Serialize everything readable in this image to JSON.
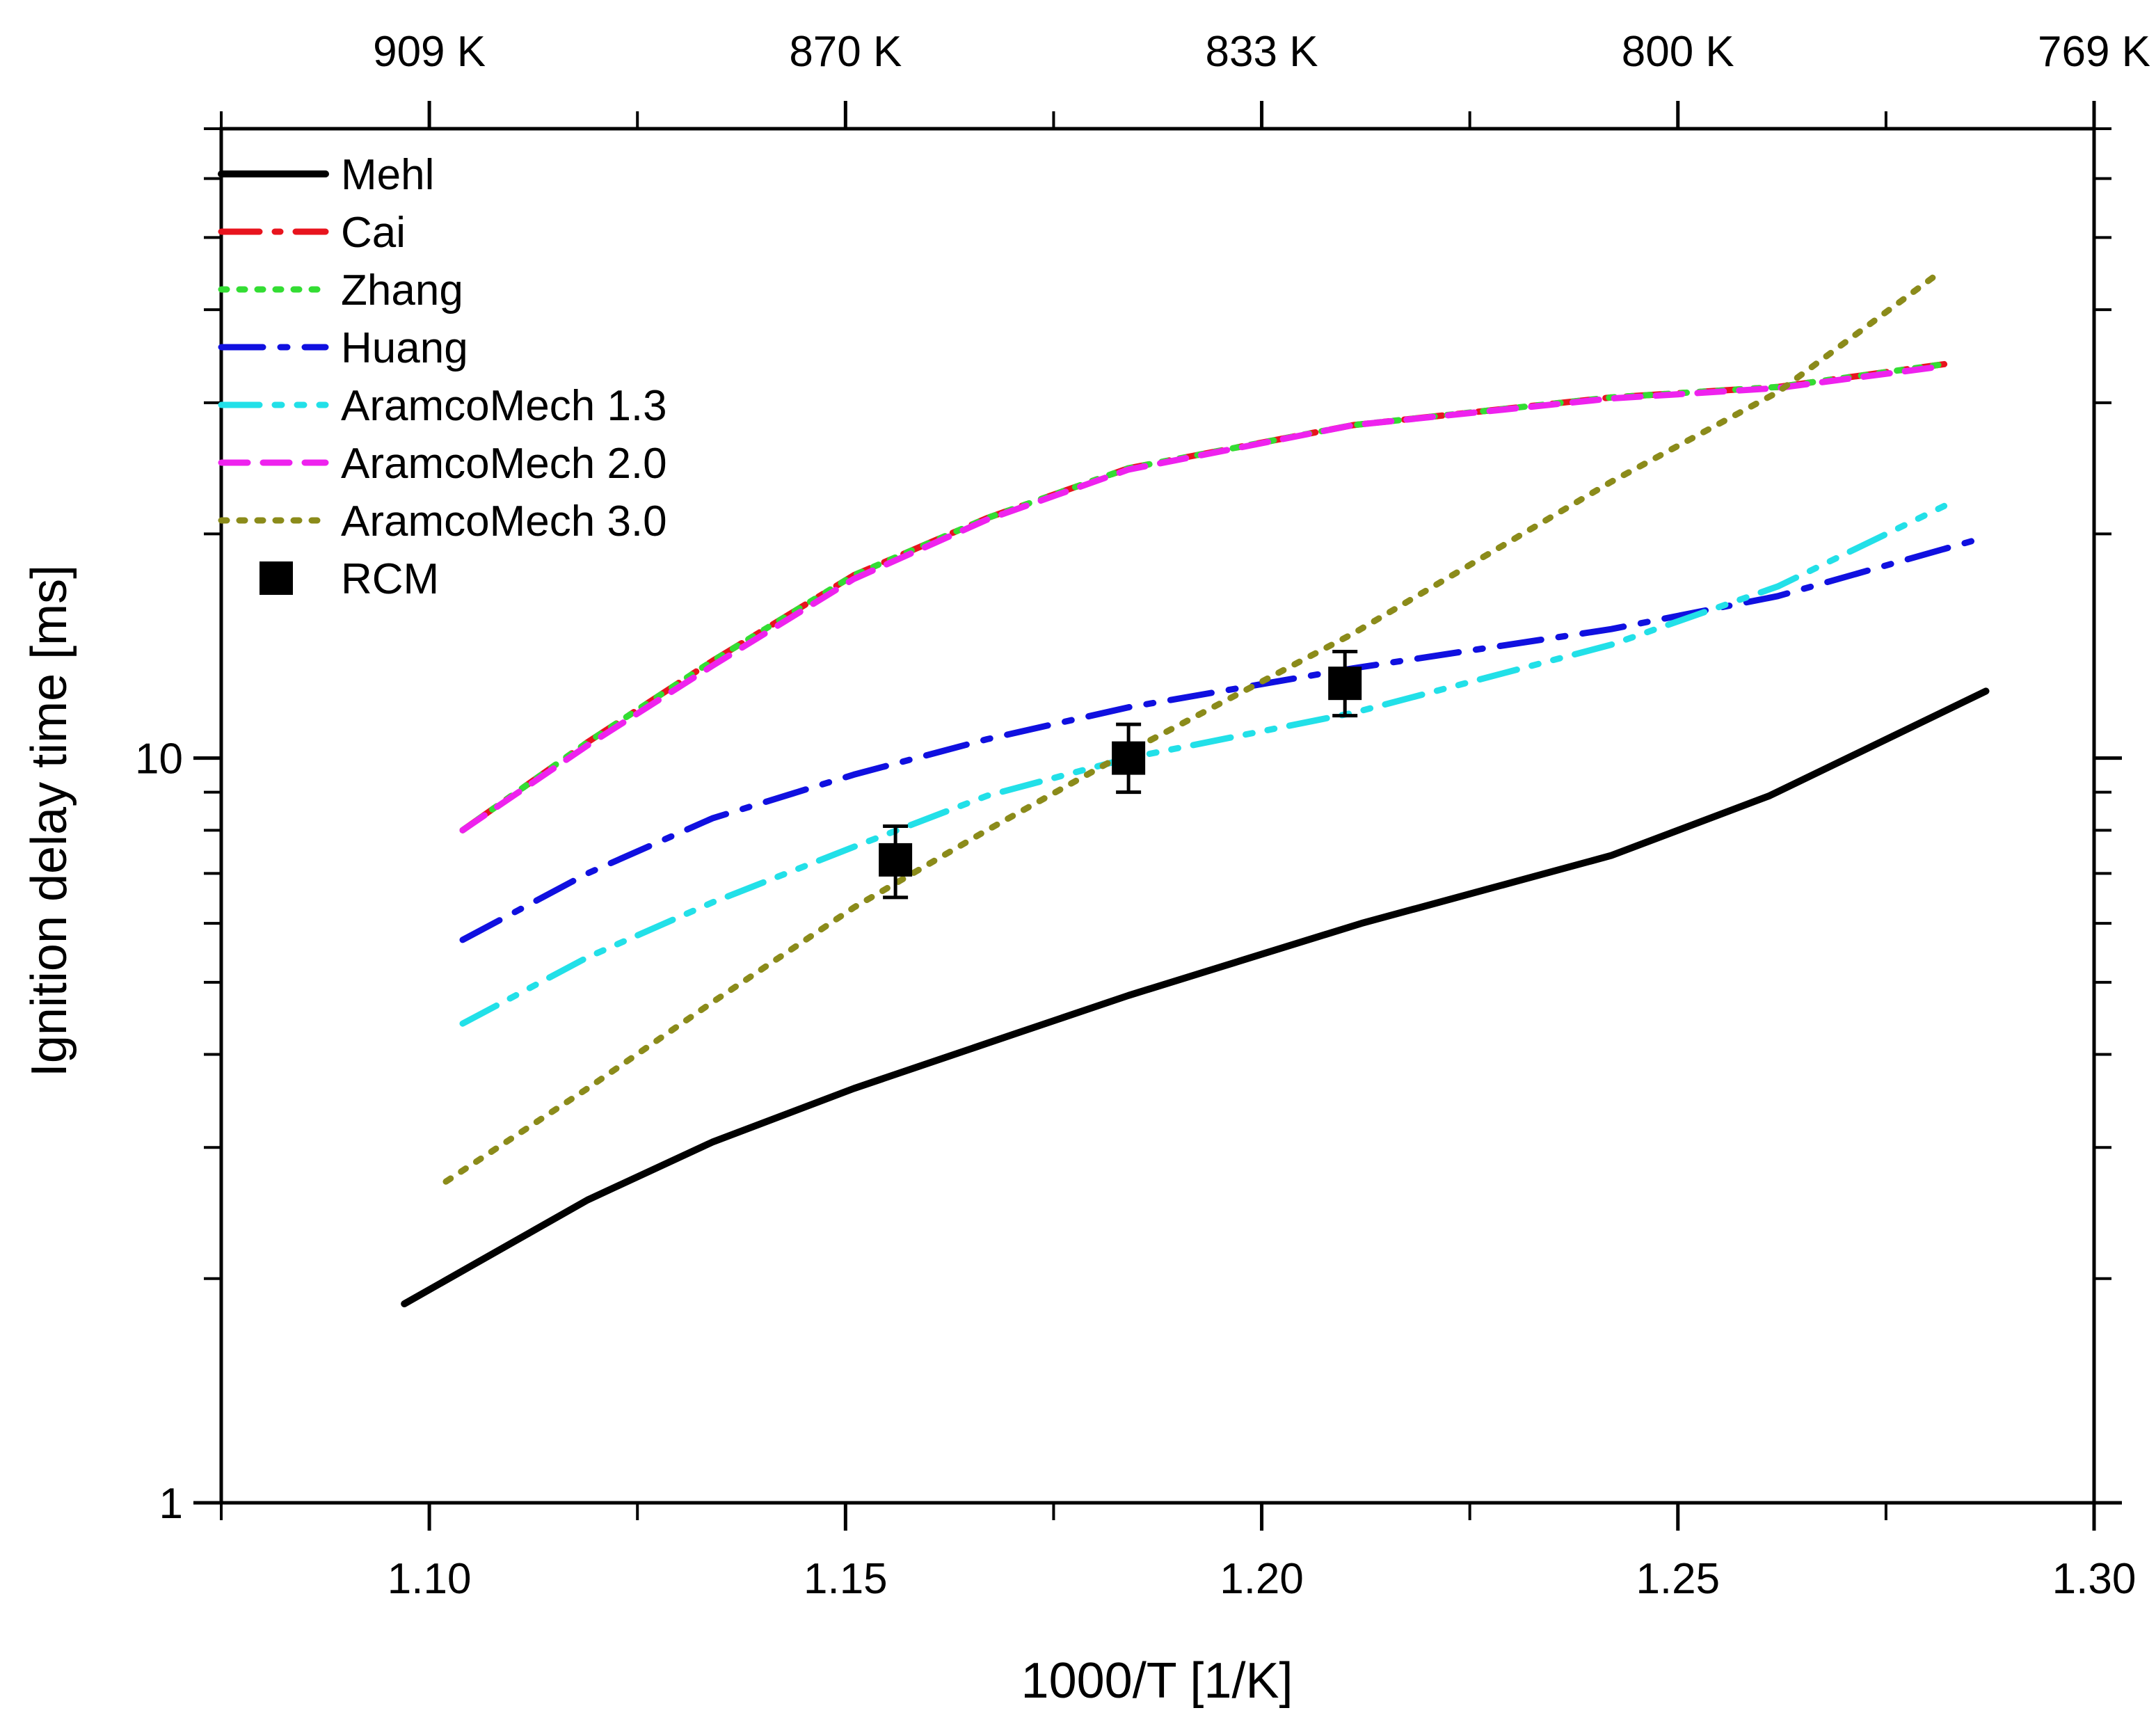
{
  "chart_data": {
    "type": "line",
    "title": "",
    "xlabel": "1000/T [1/K]",
    "ylabel": "Ignition delay time [ms]",
    "xlim": [
      1.075,
      1.3
    ],
    "ylim": [
      1,
      70
    ],
    "yscale": "log",
    "x_ticks": [
      {
        "value": 1.1,
        "label": "1.10"
      },
      {
        "value": 1.15,
        "label": "1.15"
      },
      {
        "value": 1.2,
        "label": "1.20"
      },
      {
        "value": 1.25,
        "label": "1.25"
      },
      {
        "value": 1.3,
        "label": "1.30"
      }
    ],
    "y_ticks": [
      {
        "value": 1,
        "label": "1"
      },
      {
        "value": 10,
        "label": "10"
      }
    ],
    "top_axis_ticks": [
      {
        "value": 1.1,
        "label": "909 K"
      },
      {
        "value": 1.15,
        "label": "870 K"
      },
      {
        "value": 1.2,
        "label": "833 K"
      },
      {
        "value": 1.25,
        "label": "800 K"
      },
      {
        "value": 1.3,
        "label": "769 K"
      }
    ],
    "legend_position": "top-left",
    "series": [
      {
        "name": "Mehl",
        "color": "#000000",
        "dash": "solid",
        "x": [
          1.097,
          1.119,
          1.134,
          1.151,
          1.17,
          1.184,
          1.212,
          1.242,
          1.261,
          1.287
        ],
        "y": [
          1.85,
          2.55,
          3.05,
          3.6,
          4.25,
          4.8,
          6.0,
          7.4,
          8.9,
          12.3
        ]
      },
      {
        "name": "Cai",
        "color": "#e8141e",
        "dash": "longdash-dot",
        "x": [
          1.104,
          1.119,
          1.134,
          1.151,
          1.167,
          1.184,
          1.211,
          1.242,
          1.262,
          1.282
        ],
        "y": [
          8.0,
          10.5,
          13.5,
          17.6,
          21.0,
          24.5,
          28.0,
          30.5,
          31.5,
          33.8
        ]
      },
      {
        "name": "Zhang",
        "color": "#33dd33",
        "dash": "dot",
        "x": [
          1.104,
          1.119,
          1.134,
          1.151,
          1.167,
          1.184,
          1.211,
          1.242,
          1.262,
          1.282
        ],
        "y": [
          8.0,
          10.5,
          13.5,
          17.6,
          21.0,
          24.5,
          28.0,
          30.5,
          31.5,
          33.8
        ]
      },
      {
        "name": "Huang",
        "color": "#1010e0",
        "dash": "dashdot",
        "x": [
          1.104,
          1.119,
          1.134,
          1.151,
          1.167,
          1.184,
          1.211,
          1.242,
          1.262,
          1.287
        ],
        "y": [
          5.7,
          7.0,
          8.3,
          9.5,
          10.6,
          11.7,
          13.2,
          14.9,
          16.5,
          19.8
        ]
      },
      {
        "name": "AramcoMech 1.3",
        "color": "#22e0e8",
        "dash": "dashdotdot",
        "x": [
          1.104,
          1.119,
          1.134,
          1.151,
          1.167,
          1.184,
          1.211,
          1.242,
          1.262,
          1.282
        ],
        "y": [
          4.4,
          5.4,
          6.4,
          7.6,
          8.9,
          10.0,
          11.5,
          14.2,
          17.0,
          21.8
        ]
      },
      {
        "name": "AramcoMech 2.0",
        "color": "#ee22ee",
        "dash": "dash",
        "x": [
          1.104,
          1.119,
          1.134,
          1.151,
          1.167,
          1.184,
          1.211,
          1.242,
          1.262,
          1.282
        ],
        "y": [
          8.0,
          10.4,
          13.3,
          17.4,
          20.9,
          24.4,
          28.0,
          30.4,
          31.4,
          33.6
        ]
      },
      {
        "name": "AramcoMech 3.0",
        "color": "#8b8b1a",
        "dash": "dot",
        "x": [
          1.102,
          1.119,
          1.134,
          1.151,
          1.167,
          1.184,
          1.211,
          1.242,
          1.262,
          1.281
        ],
        "y": [
          2.7,
          3.6,
          4.7,
          6.3,
          8.0,
          10.2,
          14.7,
          23.5,
          31.0,
          44.5
        ]
      }
    ],
    "scatter": {
      "name": "RCM",
      "color": "#000000",
      "points": [
        {
          "x": 1.156,
          "y": 7.3,
          "err_low": 6.5,
          "err_high": 8.1
        },
        {
          "x": 1.184,
          "y": 10.0,
          "err_low": 9.0,
          "err_high": 11.1
        },
        {
          "x": 1.21,
          "y": 12.6,
          "err_low": 11.4,
          "err_high": 13.9
        }
      ]
    }
  }
}
